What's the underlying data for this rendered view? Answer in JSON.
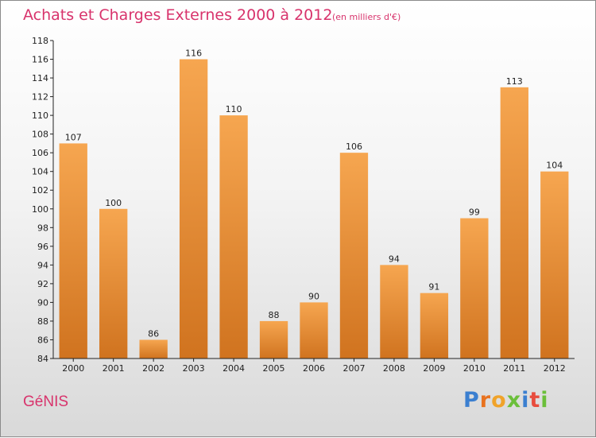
{
  "chart_data": {
    "type": "bar",
    "title": "Achats et Charges Externes 2000 à 2012",
    "unit_note": "(en milliers d'€)",
    "categories": [
      "2000",
      "2001",
      "2002",
      "2003",
      "2004",
      "2005",
      "2006",
      "2007",
      "2008",
      "2009",
      "2010",
      "2011",
      "2012"
    ],
    "values": [
      107,
      100,
      86,
      116,
      110,
      88,
      90,
      106,
      94,
      91,
      99,
      113,
      104
    ],
    "ylim": [
      84,
      118
    ],
    "y_ticks": [
      84,
      86,
      88,
      90,
      92,
      94,
      96,
      98,
      100,
      102,
      104,
      106,
      108,
      110,
      112,
      114,
      116,
      118
    ],
    "xlabel": "",
    "ylabel": "",
    "grid": false,
    "bar_colors": {
      "top": "#f6a650",
      "bottom": "#d0731f"
    }
  },
  "place": "GéNIS",
  "brand": {
    "letters": [
      "P",
      "r",
      "o",
      "x",
      "i",
      "t",
      "i"
    ],
    "colors": [
      "#3b7fd0",
      "#e8721f",
      "#f0a32a",
      "#6bbf3a",
      "#3b7fd0",
      "#e84c3d",
      "#6bbf3a"
    ]
  }
}
